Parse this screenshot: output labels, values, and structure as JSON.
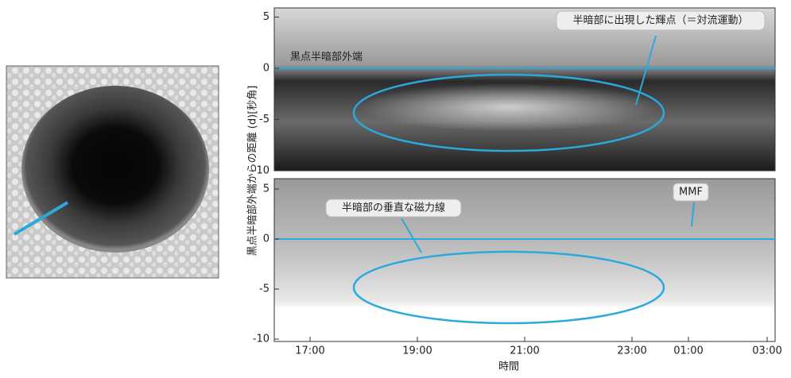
{
  "y_axis_label": "黒点半暗部外端からの距離 (d)[秒角]",
  "x_axis_label": "時間",
  "x_ticks": [
    "17:00",
    "19:00",
    "21:00",
    "23:00",
    "01:00",
    "03:00"
  ],
  "panels": [
    {
      "y_ticks": [
        5,
        0,
        -5,
        -10
      ],
      "annotations": [
        "黒点半暗部外端",
        "半暗部に出現した輝点（＝対流運動）"
      ]
    },
    {
      "y_ticks": [
        5,
        0,
        -5,
        -10
      ],
      "annotations": [
        "半暗部の垂直な磁力線",
        "MMF"
      ]
    }
  ]
}
